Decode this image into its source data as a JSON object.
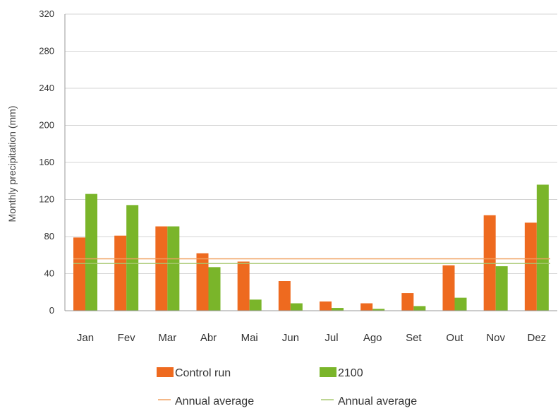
{
  "chart_data": {
    "type": "bar",
    "title": "",
    "xlabel": "",
    "ylabel": "Monthly precipitation (mm)",
    "ylim": [
      0,
      320
    ],
    "yticks": [
      0,
      40,
      80,
      120,
      160,
      200,
      240,
      280,
      320
    ],
    "grid": true,
    "legend_position": "bottom",
    "categories": [
      "Jan",
      "Fev",
      "Mar",
      "Abr",
      "Mai",
      "Jun",
      "Jul",
      "Ago",
      "Set",
      "Out",
      "Nov",
      "Dez"
    ],
    "series": [
      {
        "name": "Control run",
        "color": "#ee6a1f",
        "values": [
          79,
          81,
          91,
          62,
          53,
          32,
          10,
          8,
          19,
          49,
          103,
          95
        ],
        "average": {
          "name": "Annual average",
          "value": 56,
          "color": "#f0a060"
        }
      },
      {
        "name": "2100",
        "color": "#7ab52a",
        "values": [
          126,
          114,
          91,
          47,
          12,
          8,
          3,
          2,
          5,
          14,
          48,
          136
        ],
        "average": {
          "name": "Annual average",
          "value": 51,
          "color": "#a8c870"
        }
      }
    ]
  }
}
